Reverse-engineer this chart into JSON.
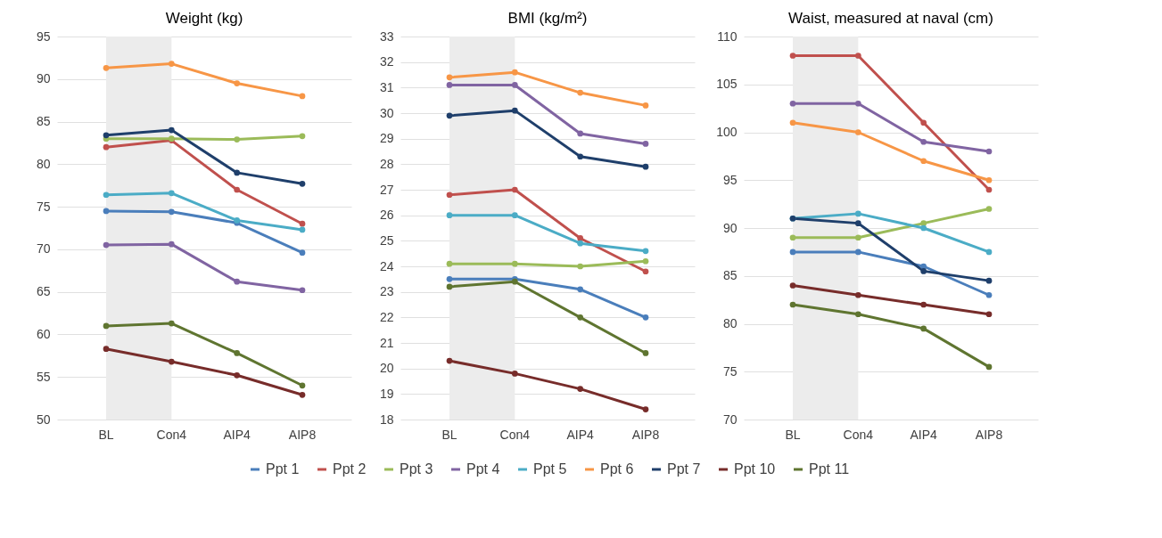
{
  "chart_data": [
    {
      "type": "line",
      "title": "Weight (kg)",
      "categories": [
        "BL",
        "Con4",
        "AIP4",
        "AIP8"
      ],
      "ylim": [
        50,
        95
      ],
      "yticks": [
        50,
        55,
        60,
        65,
        70,
        75,
        80,
        85,
        90,
        95
      ],
      "grid": "y",
      "marker": "circle",
      "legend": false,
      "bands": [
        {
          "axis": "x",
          "from": "BL",
          "to": "Con4",
          "color": "#ececec"
        }
      ],
      "series": [
        {
          "color": "#4a7ebb",
          "values": [
            74.5,
            74.4,
            73.1,
            69.6
          ]
        },
        {
          "color": "#c0504d",
          "values": [
            82.0,
            82.8,
            77.0,
            73.0
          ]
        },
        {
          "color": "#9bbb59",
          "values": [
            83.0,
            83.0,
            82.9,
            83.3
          ]
        },
        {
          "color": "#8064a2",
          "values": [
            70.5,
            70.6,
            66.2,
            65.2
          ]
        },
        {
          "color": "#4bacc6",
          "values": [
            76.4,
            76.6,
            73.4,
            72.3
          ]
        },
        {
          "color": "#f79646",
          "values": [
            91.3,
            91.8,
            89.5,
            88.0
          ]
        },
        {
          "color": "#1f3f6b",
          "values": [
            83.4,
            84.0,
            79.0,
            77.7
          ]
        },
        {
          "color": "#772c2a",
          "values": [
            58.3,
            56.8,
            55.2,
            52.9
          ]
        },
        {
          "color": "#5f7530",
          "values": [
            61.0,
            61.3,
            57.8,
            54.0
          ]
        }
      ]
    },
    {
      "type": "line",
      "title": "BMI (kg/m²)",
      "categories": [
        "BL",
        "Con4",
        "AIP4",
        "AIP8"
      ],
      "ylim": [
        18,
        33
      ],
      "yticks": [
        18,
        19,
        20,
        21,
        22,
        23,
        24,
        25,
        26,
        27,
        28,
        29,
        30,
        31,
        32,
        33
      ],
      "grid": "y",
      "marker": "circle",
      "legend": "bottom",
      "bands": [
        {
          "axis": "x",
          "from": "BL",
          "to": "Con4",
          "color": "#ececec"
        }
      ],
      "series": [
        {
          "name": "Ppt 1",
          "color": "#4a7ebb",
          "values": [
            23.5,
            23.5,
            23.1,
            22.0
          ]
        },
        {
          "name": "Ppt 2",
          "color": "#c0504d",
          "values": [
            26.8,
            27.0,
            25.1,
            23.8
          ]
        },
        {
          "name": "Ppt 3",
          "color": "#9bbb59",
          "values": [
            24.1,
            24.1,
            24.0,
            24.2
          ]
        },
        {
          "name": "Ppt 4",
          "color": "#8064a2",
          "values": [
            31.1,
            31.1,
            29.2,
            28.8
          ]
        },
        {
          "name": "Ppt 5",
          "color": "#4bacc6",
          "values": [
            26.0,
            26.0,
            24.9,
            24.6
          ]
        },
        {
          "name": "Ppt 6",
          "color": "#f79646",
          "values": [
            31.4,
            31.6,
            30.8,
            30.3
          ]
        },
        {
          "name": "Ppt 7",
          "color": "#1f3f6b",
          "values": [
            29.9,
            30.1,
            28.3,
            27.9
          ]
        },
        {
          "name": "Ppt 10",
          "color": "#772c2a",
          "values": [
            20.3,
            19.8,
            19.2,
            18.4
          ]
        },
        {
          "name": "Ppt 11",
          "color": "#5f7530",
          "values": [
            23.2,
            23.4,
            22.0,
            20.6
          ]
        }
      ]
    },
    {
      "type": "line",
      "title": "Waist, measured at naval (cm)",
      "categories": [
        "BL",
        "Con4",
        "AIP4",
        "AIP8"
      ],
      "ylim": [
        70,
        110
      ],
      "yticks": [
        70,
        75,
        80,
        85,
        90,
        95,
        100,
        105,
        110
      ],
      "grid": "y",
      "marker": "circle",
      "legend": false,
      "bands": [
        {
          "axis": "x",
          "from": "BL",
          "to": "Con4",
          "color": "#ececec"
        }
      ],
      "series": [
        {
          "color": "#4a7ebb",
          "values": [
            87.5,
            87.5,
            86,
            83
          ]
        },
        {
          "color": "#c0504d",
          "values": [
            108,
            108,
            101,
            94
          ]
        },
        {
          "color": "#9bbb59",
          "values": [
            89,
            89,
            90.5,
            92
          ]
        },
        {
          "color": "#8064a2",
          "values": [
            103,
            103,
            99,
            98
          ]
        },
        {
          "color": "#4bacc6",
          "values": [
            91,
            91.5,
            90,
            87.5
          ]
        },
        {
          "color": "#f79646",
          "values": [
            101,
            100,
            97,
            95
          ]
        },
        {
          "color": "#1f3f6b",
          "values": [
            91,
            90.5,
            85.5,
            84.5
          ]
        },
        {
          "color": "#772c2a",
          "values": [
            84,
            83,
            82,
            81
          ]
        },
        {
          "color": "#5f7530",
          "values": [
            82,
            81,
            79.5,
            75.5
          ]
        }
      ]
    }
  ]
}
